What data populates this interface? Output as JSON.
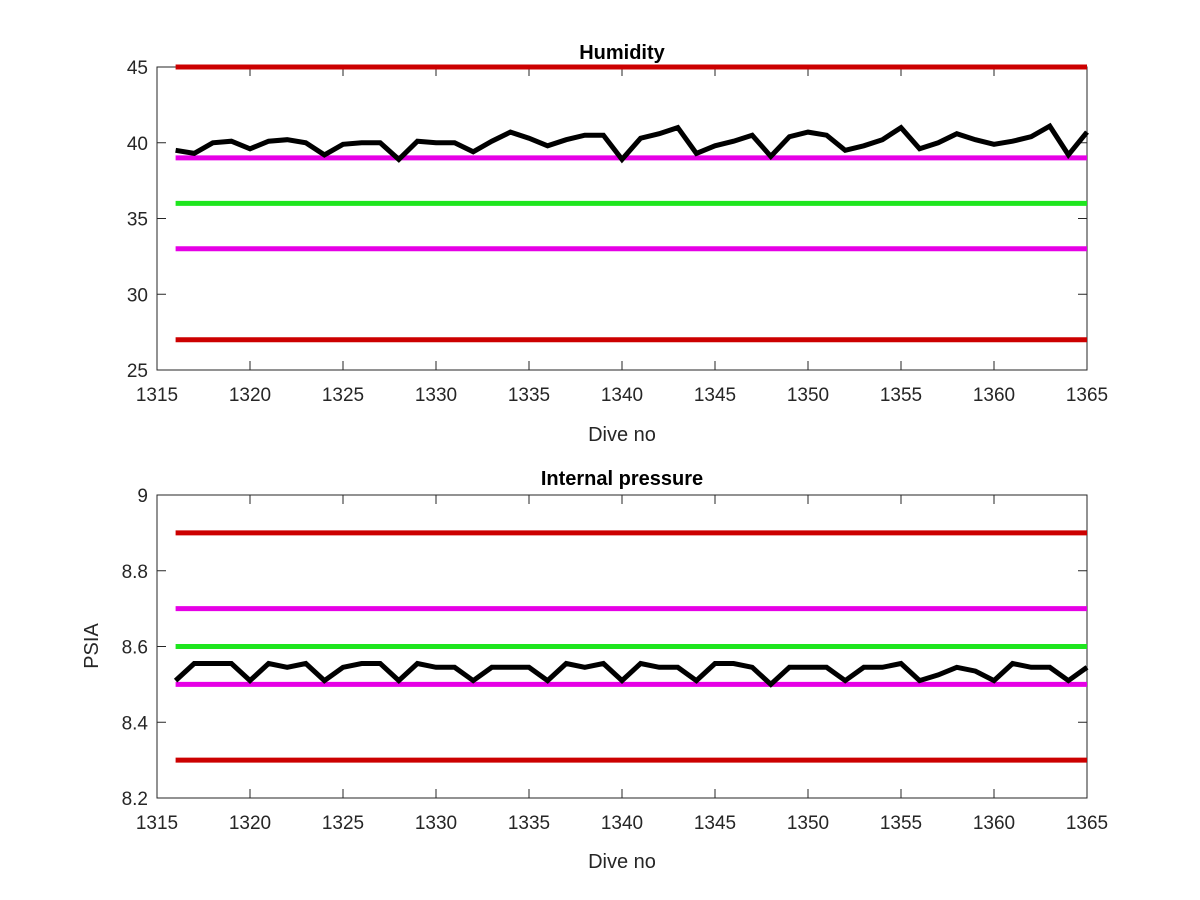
{
  "chart_data": [
    {
      "type": "line",
      "title": "Humidity",
      "xlabel": "Dive no",
      "ylabel": "",
      "xlim": [
        1315,
        1365
      ],
      "ylim": [
        25,
        45
      ],
      "xticks": [
        1315,
        1320,
        1325,
        1330,
        1335,
        1340,
        1345,
        1350,
        1355,
        1360,
        1365
      ],
      "xtick_labels": [
        "1315",
        "1320",
        "1325",
        "1330",
        "1335",
        "1340",
        "1345",
        "1350",
        "1355",
        "1360",
        "1365"
      ],
      "yticks": [
        25,
        30,
        35,
        40,
        45
      ],
      "ytick_labels": [
        "25",
        "30",
        "35",
        "40",
        "45"
      ],
      "grid": false,
      "limit_lines": [
        {
          "value": 45,
          "color": "#cc0000"
        },
        {
          "value": 39,
          "color": "#e600e6"
        },
        {
          "value": 36,
          "color": "#1ee61e"
        },
        {
          "value": 33,
          "color": "#e600e6"
        },
        {
          "value": 27,
          "color": "#cc0000"
        }
      ],
      "series": [
        {
          "color": "#000000",
          "x": [
            1316,
            1317,
            1318,
            1319,
            1320,
            1321,
            1322,
            1323,
            1324,
            1325,
            1326,
            1327,
            1328,
            1329,
            1330,
            1331,
            1332,
            1333,
            1334,
            1335,
            1336,
            1337,
            1338,
            1339,
            1340,
            1341,
            1342,
            1343,
            1344,
            1345,
            1346,
            1347,
            1348,
            1349,
            1350,
            1351,
            1352,
            1353,
            1354,
            1355,
            1356,
            1357,
            1358,
            1359,
            1360,
            1361,
            1362,
            1363,
            1364,
            1365
          ],
          "y": [
            39.5,
            39.3,
            40.0,
            40.1,
            39.6,
            40.1,
            40.2,
            40.0,
            39.2,
            39.9,
            40.0,
            40.0,
            38.9,
            40.1,
            40.0,
            40.0,
            39.4,
            40.1,
            40.7,
            40.3,
            39.8,
            40.2,
            40.5,
            40.5,
            38.9,
            40.3,
            40.6,
            41.0,
            39.3,
            39.8,
            40.1,
            40.5,
            39.1,
            40.4,
            40.7,
            40.5,
            39.5,
            39.8,
            40.2,
            41.0,
            39.6,
            40.0,
            40.6,
            40.2,
            39.9,
            40.1,
            40.4,
            41.1,
            39.2,
            40.7
          ]
        }
      ]
    },
    {
      "type": "line",
      "title": "Internal pressure",
      "xlabel": "Dive no",
      "ylabel": "PSIA",
      "xlim": [
        1315,
        1365
      ],
      "ylim": [
        8.2,
        9.0
      ],
      "xticks": [
        1315,
        1320,
        1325,
        1330,
        1335,
        1340,
        1345,
        1350,
        1355,
        1360,
        1365
      ],
      "xtick_labels": [
        "1315",
        "1320",
        "1325",
        "1330",
        "1335",
        "1340",
        "1345",
        "1350",
        "1355",
        "1360",
        "1365"
      ],
      "yticks": [
        8.2,
        8.4,
        8.6,
        8.8,
        9.0
      ],
      "ytick_labels": [
        "8.2",
        "8.4",
        "8.6",
        "8.8",
        "9"
      ],
      "grid": false,
      "limit_lines": [
        {
          "value": 8.9,
          "color": "#cc0000"
        },
        {
          "value": 8.7,
          "color": "#e600e6"
        },
        {
          "value": 8.6,
          "color": "#1ee61e"
        },
        {
          "value": 8.5,
          "color": "#e600e6"
        },
        {
          "value": 8.3,
          "color": "#cc0000"
        }
      ],
      "series": [
        {
          "color": "#000000",
          "x": [
            1316,
            1317,
            1318,
            1319,
            1320,
            1321,
            1322,
            1323,
            1324,
            1325,
            1326,
            1327,
            1328,
            1329,
            1330,
            1331,
            1332,
            1333,
            1334,
            1335,
            1336,
            1337,
            1338,
            1339,
            1340,
            1341,
            1342,
            1343,
            1344,
            1345,
            1346,
            1347,
            1348,
            1349,
            1350,
            1351,
            1352,
            1353,
            1354,
            1355,
            1356,
            1357,
            1358,
            1359,
            1360,
            1361,
            1362,
            1363,
            1364,
            1365
          ],
          "y": [
            8.51,
            8.555,
            8.555,
            8.555,
            8.51,
            8.555,
            8.545,
            8.555,
            8.51,
            8.545,
            8.555,
            8.555,
            8.51,
            8.555,
            8.545,
            8.545,
            8.51,
            8.545,
            8.545,
            8.545,
            8.51,
            8.555,
            8.545,
            8.555,
            8.51,
            8.555,
            8.545,
            8.545,
            8.51,
            8.555,
            8.555,
            8.545,
            8.5,
            8.545,
            8.545,
            8.545,
            8.51,
            8.545,
            8.545,
            8.555,
            8.51,
            8.525,
            8.545,
            8.535,
            8.51,
            8.555,
            8.545,
            8.545,
            8.51,
            8.545
          ]
        }
      ]
    }
  ]
}
